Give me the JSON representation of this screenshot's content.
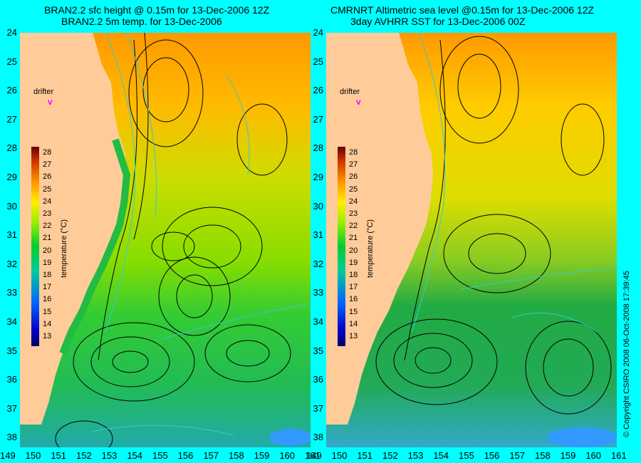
{
  "left_panel": {
    "title_line1": "BRAN2.2 sfc height @ 0.15m for 13-Dec-2006 12Z",
    "title_line2": "BRAN2.2 5m temp. for 13-Dec-2006"
  },
  "right_panel": {
    "title_line1": "CMRNRT Altimetric sea level  @0.15m  for 13-Dec-2006 12Z",
    "title_line2": "3day AVHRR SST for 13-Dec-2006 00Z"
  },
  "x_ticks": [
    "149",
    "150",
    "151",
    "152",
    "153",
    "154",
    "155",
    "156",
    "157",
    "158",
    "159",
    "160",
    "161"
  ],
  "y_ticks": [
    "24",
    "25",
    "26",
    "27",
    "28",
    "29",
    "30",
    "31",
    "32",
    "33",
    "34",
    "35",
    "36",
    "37",
    "38"
  ],
  "drifter_label": "drifter",
  "drifter_symbol": "v",
  "colorbar": {
    "label": "temperature (°C)",
    "ticks": [
      "28",
      "27",
      "26",
      "25",
      "24",
      "23",
      "22",
      "21",
      "20",
      "19",
      "18",
      "17",
      "16",
      "15",
      "14",
      "13"
    ]
  },
  "copyright": "© Copyright CSIRO 2008   06-Oct-2008 17:39:45",
  "colors": {
    "background": "#00ffff",
    "land": "#ffcc99",
    "contour": "#000000",
    "iso_contour": "#33cccc"
  }
}
